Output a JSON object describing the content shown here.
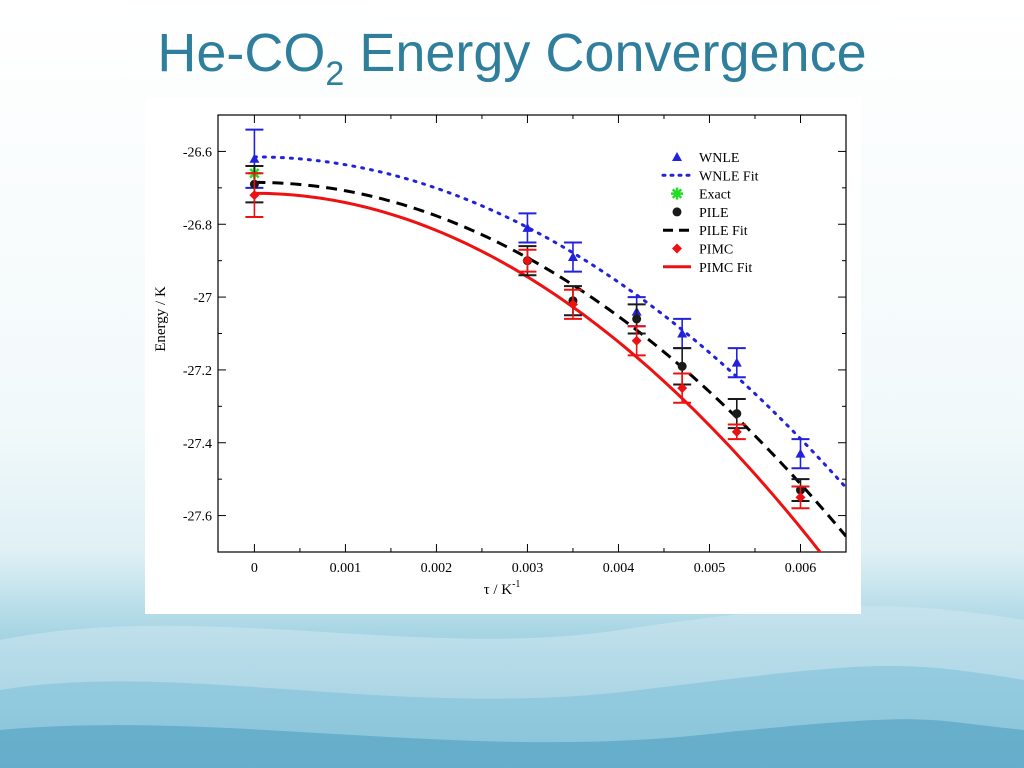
{
  "slide": {
    "title_main": "He-CO",
    "title_sub": "2",
    "title_rest": " Energy Convergence"
  },
  "colors": {
    "title": "#2f7f9c",
    "wnle": "#2222dd",
    "exact": "#22dd22",
    "pile": "#000000",
    "pimc": "#ee1111"
  },
  "chart_data": {
    "type": "scatter",
    "xlabel_main": "τ  / K",
    "xlabel_sup": "-1",
    "ylabel": "Energy / K",
    "xlim": [
      -0.0004,
      0.0065
    ],
    "ylim": [
      -27.7,
      -26.5
    ],
    "xticks": [
      0,
      0.001,
      0.002,
      0.003,
      0.004,
      0.005,
      0.006
    ],
    "xtick_labels": [
      "0",
      "0.001",
      "0.002",
      "0.003",
      "0.004",
      "0.005",
      "0.006"
    ],
    "yticks": [
      -26.6,
      -26.8,
      -27,
      -27.2,
      -27.4,
      -27.6
    ],
    "ytick_labels": [
      "-26.6",
      "-26.8",
      "-27",
      "-27.2",
      "-27.4",
      "-27.6"
    ],
    "legend_position": "top-right",
    "legend": [
      {
        "label": "WNLE",
        "kind": "triangle",
        "color": "#2222dd"
      },
      {
        "label": "WNLE Fit",
        "kind": "dotted",
        "color": "#2222dd"
      },
      {
        "label": "Exact",
        "kind": "star",
        "color": "#22dd22"
      },
      {
        "label": "PILE",
        "kind": "circle",
        "color": "#1a1a1a"
      },
      {
        "label": "PILE Fit",
        "kind": "dashed",
        "color": "#000000"
      },
      {
        "label": "PIMC",
        "kind": "diamond",
        "color": "#ee1111"
      },
      {
        "label": "PIMC Fit",
        "kind": "solid",
        "color": "#ee1111"
      }
    ],
    "series": [
      {
        "name": "WNLE",
        "marker": "triangle",
        "color": "#2222dd",
        "x": [
          0,
          0.003,
          0.0035,
          0.0042,
          0.0047,
          0.0053,
          0.006
        ],
        "y": [
          -26.62,
          -26.81,
          -26.89,
          -27.04,
          -27.1,
          -27.18,
          -27.43
        ],
        "err": [
          0.08,
          0.04,
          0.04,
          0.04,
          0.04,
          0.04,
          0.04
        ]
      },
      {
        "name": "Exact",
        "marker": "star",
        "color": "#22dd22",
        "x": [
          0
        ],
        "y": [
          -26.66
        ],
        "err": [
          0
        ]
      },
      {
        "name": "PILE",
        "marker": "circle",
        "color": "#1a1a1a",
        "x": [
          0,
          0.003,
          0.0035,
          0.0042,
          0.0047,
          0.0053,
          0.006
        ],
        "y": [
          -26.69,
          -26.9,
          -27.01,
          -27.06,
          -27.19,
          -27.32,
          -27.53
        ],
        "err": [
          0.05,
          0.04,
          0.04,
          0.04,
          0.05,
          0.04,
          0.03
        ]
      },
      {
        "name": "PIMC",
        "marker": "diamond",
        "color": "#ee1111",
        "x": [
          0,
          0.003,
          0.0035,
          0.0042,
          0.0047,
          0.0053,
          0.006
        ],
        "y": [
          -26.72,
          -26.9,
          -27.02,
          -27.12,
          -27.25,
          -27.37,
          -27.55
        ],
        "err": [
          0.06,
          0.03,
          0.04,
          0.04,
          0.04,
          0.02,
          0.03
        ]
      }
    ],
    "fits": [
      {
        "name": "WNLE Fit",
        "style": "dotted",
        "color": "#2222dd",
        "a": -26.615,
        "b": -21500
      },
      {
        "name": "PILE Fit",
        "style": "dashed",
        "color": "#000000",
        "a": -26.685,
        "b": -23000
      },
      {
        "name": "PIMC Fit",
        "style": "solid",
        "color": "#ee1111",
        "a": -26.715,
        "b": -25500
      }
    ]
  }
}
